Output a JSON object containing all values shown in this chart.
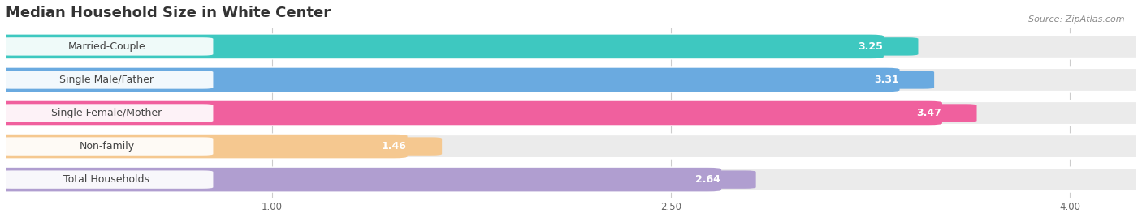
{
  "title": "Median Household Size in White Center",
  "source": "Source: ZipAtlas.com",
  "categories": [
    "Married-Couple",
    "Single Male/Father",
    "Single Female/Mother",
    "Non-family",
    "Total Households"
  ],
  "values": [
    3.25,
    3.31,
    3.47,
    1.46,
    2.64
  ],
  "bar_colors": [
    "#3ec8c0",
    "#6aaae0",
    "#f0609e",
    "#f5c890",
    "#b09ed0"
  ],
  "bg_colors": [
    "#ebebeb",
    "#ebebeb",
    "#ebebeb",
    "#ebebeb",
    "#ebebeb"
  ],
  "xlim_data": [
    0.0,
    4.4
  ],
  "xmin": 0.0,
  "xmax": 4.0,
  "xticks": [
    1.0,
    2.5,
    4.0
  ],
  "title_fontsize": 13,
  "label_fontsize": 9,
  "value_fontsize": 9,
  "bar_height": 0.62,
  "bar_gap": 0.38,
  "background_color": "#ffffff"
}
